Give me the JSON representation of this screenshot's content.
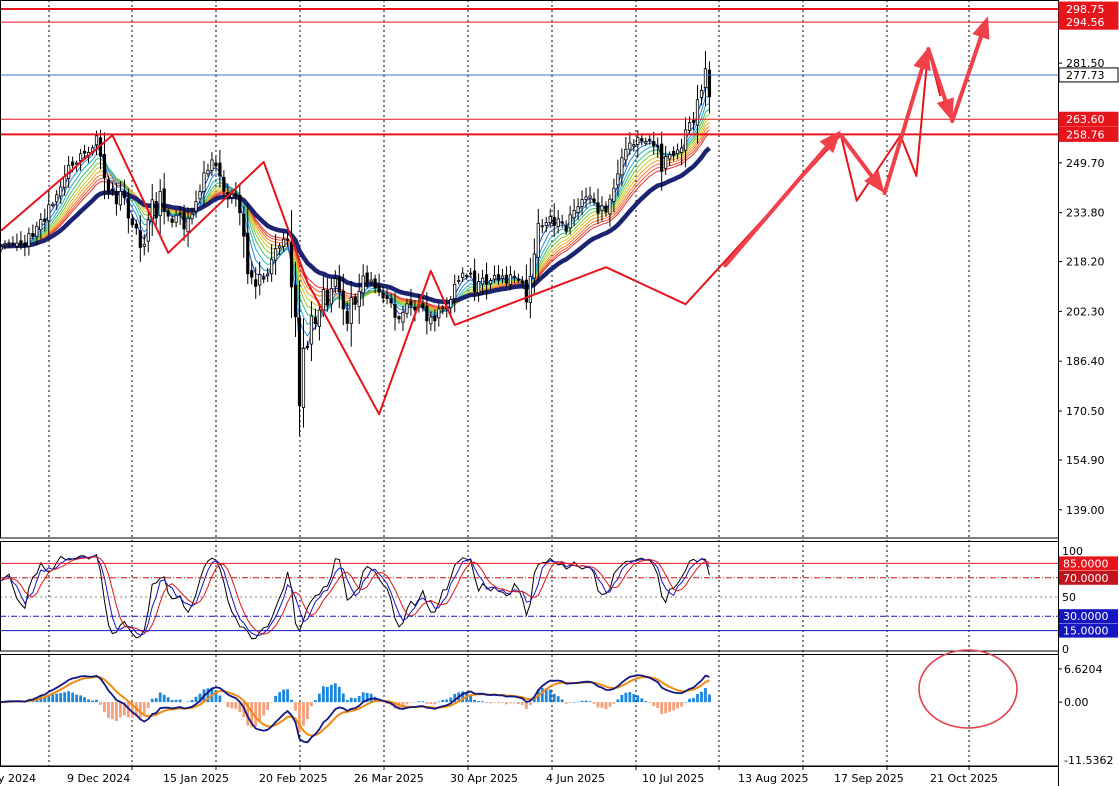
{
  "chart_data": {
    "type": "candlestick",
    "main": {
      "price_range": [
        130,
        301
      ],
      "price_ticks": [
        "281.50",
        "249.70",
        "233.80",
        "218.20",
        "202.30",
        "186.40",
        "170.50",
        "154.90",
        "139.00"
      ],
      "horizontal_lines": [
        {
          "value": 298.75,
          "label": "298.75",
          "color": "#e8141c",
          "style": "solid"
        },
        {
          "value": 294.56,
          "label": "294.56",
          "color": "#e8141c",
          "style": "solid"
        },
        {
          "value": 277.73,
          "label": "277.73",
          "color": "#3a6fd8",
          "style": "solid",
          "current": true
        },
        {
          "value": 263.6,
          "label": "263.60",
          "color": "#e8141c",
          "style": "solid"
        },
        {
          "value": 258.76,
          "label": "258.76",
          "color": "#e8141c",
          "style": "solid"
        }
      ],
      "close": [
        223.0,
        224.0,
        224.2,
        223.6,
        224.1,
        223.6,
        223.1,
        227.1,
        226.2,
        229.4,
        231.6,
        231.0,
        236.3,
        236.5,
        239.5,
        242.0,
        245.3,
        248.9,
        248.9,
        249.6,
        252.6,
        252.8,
        253.0,
        254.5,
        258.3,
        251.8,
        245.0,
        240.4,
        241.0,
        236.6,
        240.6,
        238.6,
        232.1,
        230.0,
        228.9,
        222.7,
        223.7,
        231.5,
        237.9,
        232.2,
        240.6,
        234.1,
        232.7,
        230.7,
        233.0,
        233.3,
        228.6,
        232.0,
        233.3,
        237.3,
        240.6,
        246.5,
        247.3,
        250.6,
        248.7,
        245.5,
        240.6,
        238.4,
        239.6,
        239.3,
        233.8,
        226.3,
        214.3,
        213.2,
        210.3,
        214.0,
        212.6,
        214.2,
        218.9,
        222.3,
        223.1,
        225.3,
        225.3,
        210.1,
        200.6,
        172.2,
        190.5,
        190.8,
        200.8,
        198.4,
        202.7,
        209.3,
        204.3,
        209.6,
        212.7,
        208.5,
        203.1,
        198.5,
        206.7,
        204.6,
        208.7,
        213.6,
        211.5,
        212.3,
        209.8,
        208.5,
        206.6,
        206.4,
        205.0,
        200.4,
        199.9,
        202.0,
        204.7,
        204.3,
        202.8,
        204.4,
        203.4,
        199.3,
        200.5,
        199.3,
        203.1,
        203.4,
        203.2,
        206.1,
        210.9,
        212.2,
        214.5,
        213.8,
        214.3,
        208.6,
        211.8,
        212.9,
        210.9,
        212.1,
        213.8,
        212.3,
        213.6,
        211.3,
        214.0,
        213.5,
        212.2,
        211.4,
        205.3,
        213.4,
        220.6,
        230.4,
        229.6,
        230.6,
        232.6,
        229.7,
        231.8,
        230.5,
        227.9,
        233.1,
        234.5,
        235.7,
        238.0,
        238.8,
        239.1,
        237.2,
        233.6,
        236.0,
        234.0,
        238.1,
        241.6,
        246.2,
        251.3,
        254.0,
        256.0,
        255.5,
        257.7,
        256.7,
        256.4,
        257.2,
        255.1,
        254.8,
        247.0,
        251.7,
        252.3,
        252.1,
        253.8,
        254.4,
        260.2,
        262.5,
        262.6,
        269.8,
        272.8,
        279.7,
        270.8
      ],
      "ema_ribbon_colors": [
        "#1f4fc4",
        "#2a8ad8",
        "#2ab0c8",
        "#3cc06e",
        "#86cc30",
        "#d0c82a",
        "#f0a228",
        "#f07a2c",
        "#e8503a",
        "#e03030"
      ],
      "slow_ma_color": "#1c2371"
    },
    "stochastic": {
      "range": [
        0,
        100
      ],
      "ticks": [
        "100",
        "50",
        "0"
      ],
      "levels": [
        {
          "value": 85,
          "label": "85.0000",
          "color": "#e8141c",
          "style": "solid"
        },
        {
          "value": 70,
          "label": "70.0000",
          "color": "#c0141c",
          "style": "dashdot"
        },
        {
          "value": 30,
          "label": "30.0000",
          "color": "#1414c0",
          "style": "dashdot"
        },
        {
          "value": 15,
          "label": "15.0000",
          "color": "#1414c0",
          "style": "solid"
        }
      ],
      "line_colors": [
        "#000000",
        "#1414d0",
        "#e01414"
      ]
    },
    "macd": {
      "ticks": [
        "6.6204",
        "0.00",
        "-11.5362"
      ],
      "range": [
        -11.5362,
        8.0
      ],
      "positive_color": "#1a86e0",
      "negative_color": "#f5a07a",
      "signal_color": "#f08a10",
      "macd_color": "#101880"
    },
    "x_labels": [
      "y 2024",
      "9 Dec 2024",
      "15 Jan 2025",
      "20 Feb 2025",
      "26 Mar 2025",
      "30 Apr 2025",
      "4 Jun 2025",
      "10 Jul 2025",
      "13 Aug 2025",
      "17 Sep 2025",
      "21 Oct 2025"
    ],
    "annotations": {
      "zigzag_color": "#e8141c",
      "zigzag": [
        [
          0,
          228.0
        ],
        [
          28,
          258.5
        ],
        [
          42,
          221.0
        ],
        [
          66,
          250.0
        ],
        [
          77,
          211.5
        ],
        [
          95,
          169.5
        ],
        [
          108,
          215.2
        ],
        [
          114,
          198.0
        ],
        [
          152,
          216.4
        ],
        [
          172,
          204.6
        ],
        [
          211,
          258.6
        ],
        [
          215,
          237.6
        ],
        [
          226,
          258.4
        ],
        [
          230,
          245.5
        ],
        [
          233,
          286.2
        ],
        [
          236,
          271.0
        ]
      ],
      "arrows": [
        {
          "from": [
            182,
            217.0
          ],
          "to": [
            211,
            260.0
          ]
        },
        {
          "from": [
            211,
            258.6
          ],
          "to": [
            222,
            240.0
          ]
        },
        {
          "from": [
            222,
            240.0
          ],
          "to": [
            233,
            286.5
          ]
        },
        {
          "from": [
            233,
            286.0
          ],
          "to": [
            239,
            263.0
          ]
        },
        {
          "from": [
            239,
            263.0
          ],
          "to": [
            248,
            296.5
          ]
        }
      ],
      "ellipse": {
        "cx": 968,
        "cy": 689,
        "rx": 49,
        "ry": 39,
        "color": "#e04050"
      }
    }
  }
}
